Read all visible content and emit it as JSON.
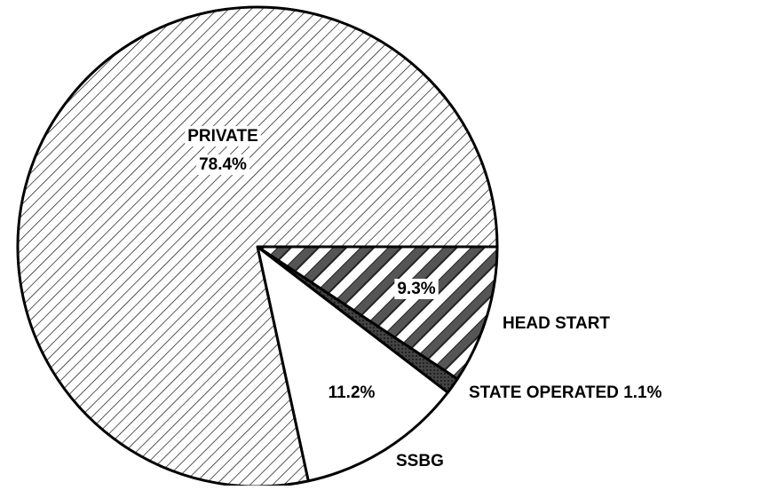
{
  "chart_data": {
    "type": "pie",
    "categories": [
      "HEAD START",
      "STATE OPERATED",
      "SSBG",
      "PRIVATE"
    ],
    "values": [
      9.3,
      1.1,
      11.2,
      78.4
    ],
    "value_labels": [
      "9.3%",
      "1.1%",
      "11.2%",
      "78.4%"
    ]
  }
}
